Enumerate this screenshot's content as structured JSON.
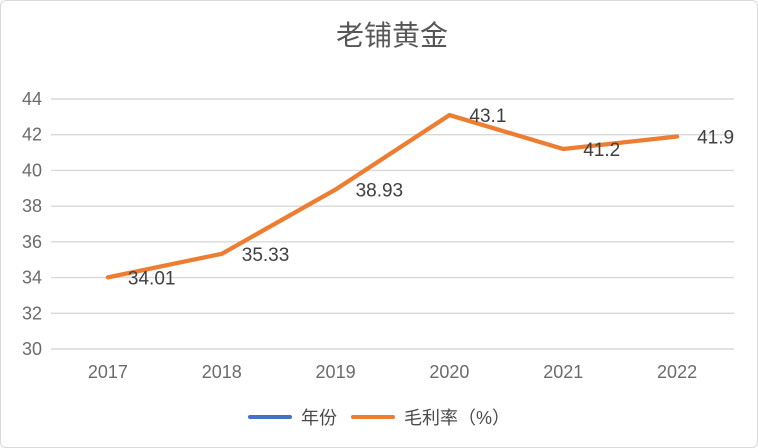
{
  "frame": {
    "background": "#FFFFFF",
    "border_color": "#D9D9D9"
  },
  "chart_data": {
    "type": "line",
    "title": "老铺黄金",
    "categories": [
      "2017",
      "2018",
      "2019",
      "2020",
      "2021",
      "2022"
    ],
    "series": [
      {
        "name": "年份",
        "color": "#4472C4",
        "values": []
      },
      {
        "name": "毛利率（%）",
        "color": "#ED7D31",
        "values": [
          34.01,
          35.33,
          38.93,
          43.1,
          41.2,
          41.9
        ],
        "labels": [
          "34.01",
          "35.33",
          "38.93",
          "43.1",
          "41.2",
          "41.9"
        ]
      }
    ],
    "xlabel": "",
    "ylabel": "",
    "ylim": [
      30,
      44
    ],
    "y_step": 2,
    "y_ticks": [
      "30",
      "32",
      "34",
      "36",
      "38",
      "40",
      "42",
      "44"
    ],
    "grid": true,
    "legend_position": "bottom",
    "colors": {
      "gridline": "#D9D9D9",
      "tick_text": "#6B6B6B",
      "data_label_text": "#404040",
      "title_text": "#565656"
    }
  }
}
